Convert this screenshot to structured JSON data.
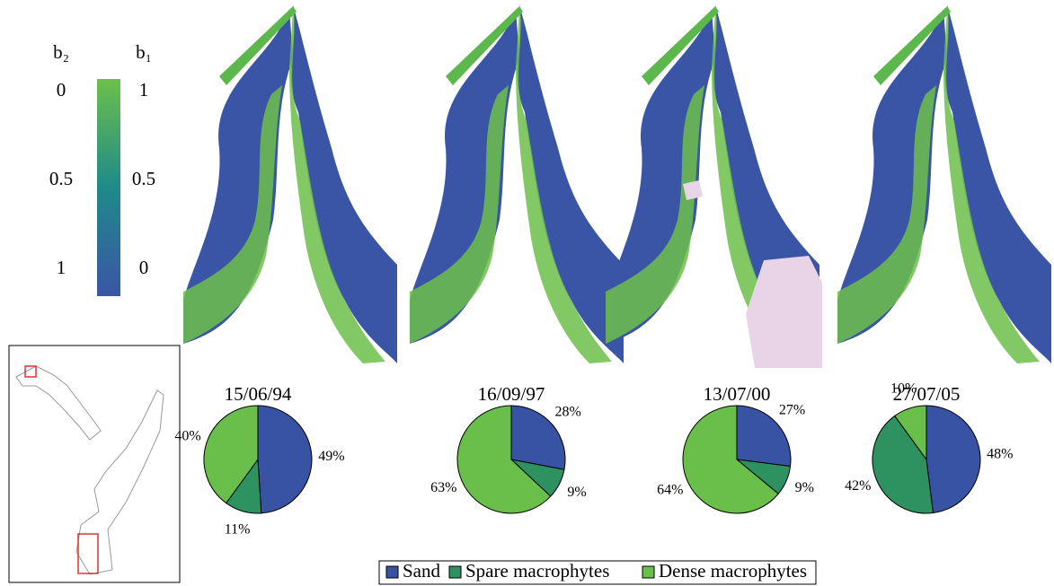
{
  "colorbar": {
    "labels": [
      "b₂",
      "b₁"
    ],
    "b1lim": [
      0,
      1
    ],
    "b1ticks": [
      0,
      0.5,
      1
    ],
    "b2ticks": [
      1,
      0.5,
      0
    ],
    "colors": [
      "#3b55a6",
      "#1f8a8a",
      "#6cc04a"
    ]
  },
  "chart_data": [
    {
      "type": "pie",
      "title": "15/06/94",
      "categories": [
        "Sand",
        "Spare macrophytes",
        "Dense macrophytes"
      ],
      "values": [
        49,
        11,
        40
      ],
      "value_labels": [
        "49%",
        "11%",
        "40%"
      ],
      "colors": [
        "#3953a4",
        "#2e9160",
        "#6abf4b"
      ]
    },
    {
      "type": "pie",
      "title": "16/09/97",
      "categories": [
        "Sand",
        "Spare macrophytes",
        "Dense macrophytes"
      ],
      "values": [
        28,
        9,
        63
      ],
      "value_labels": [
        "28%",
        "9%",
        "63%"
      ],
      "colors": [
        "#3953a4",
        "#2e9160",
        "#6abf4b"
      ]
    },
    {
      "type": "pie",
      "title": "13/07/00",
      "categories": [
        "Sand",
        "Spare macrophytes",
        "Dense macrophytes"
      ],
      "values": [
        27,
        9,
        64
      ],
      "value_labels": [
        "27%",
        "9%",
        "64%"
      ],
      "colors": [
        "#3953a4",
        "#2e9160",
        "#6abf4b"
      ]
    },
    {
      "type": "pie",
      "title": "27/07/05",
      "categories": [
        "Sand",
        "Spare macrophytes",
        "Dense macrophytes"
      ],
      "values": [
        48,
        42,
        10
      ],
      "value_labels": [
        "48%",
        "42%",
        "10%"
      ],
      "colors": [
        "#3953a4",
        "#2e9160",
        "#6abf4b"
      ]
    }
  ]
}
